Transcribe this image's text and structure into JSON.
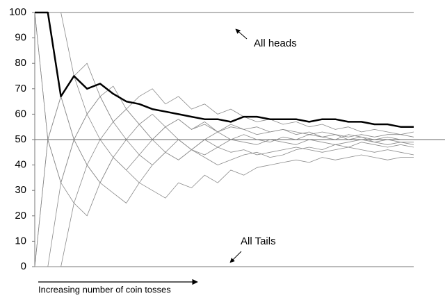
{
  "chart_data": {
    "type": "line",
    "x": [
      1,
      2,
      3,
      4,
      5,
      6,
      7,
      8,
      9,
      10,
      11,
      12,
      13,
      14,
      15,
      16,
      17,
      18,
      19,
      20,
      21,
      22,
      23,
      24,
      25,
      26,
      27,
      28,
      29,
      30
    ],
    "xlim": [
      1,
      30
    ],
    "ylim": [
      0,
      100
    ],
    "yticks": [
      0,
      10,
      20,
      30,
      40,
      50,
      60,
      70,
      80,
      90,
      100
    ],
    "reference_line": 50,
    "annotations": [
      "All heads",
      "All Tails",
      "Increasing number of coin tosses"
    ],
    "series": [
      {
        "color": "#8a8a8a",
        "width": 0.8,
        "values": [
          0,
          50,
          33,
          50,
          40,
          50,
          43,
          38,
          44,
          40,
          45,
          42,
          46,
          44,
          47,
          45,
          46,
          44,
          45,
          46,
          47,
          46,
          45,
          46,
          47,
          46,
          45,
          46,
          45,
          44
        ]
      },
      {
        "color": "#8a8a8a",
        "width": 0.8,
        "values": [
          100,
          50,
          67,
          50,
          60,
          50,
          57,
          62,
          56,
          60,
          55,
          58,
          54,
          56,
          53,
          55,
          54,
          52,
          53,
          54,
          53,
          52,
          53,
          52,
          51,
          52,
          51,
          52,
          52,
          51
        ]
      },
      {
        "color": "#8a8a8a",
        "width": 0.8,
        "values": [
          0,
          0,
          33,
          25,
          40,
          33,
          29,
          25,
          33,
          30,
          27,
          33,
          31,
          36,
          33,
          38,
          36,
          39,
          40,
          41,
          42,
          41,
          43,
          42,
          43,
          44,
          43,
          42,
          43,
          43
        ]
      },
      {
        "color": "#8a8a8a",
        "width": 0.8,
        "values": [
          100,
          100,
          67,
          75,
          60,
          67,
          71,
          62,
          67,
          70,
          64,
          67,
          62,
          64,
          60,
          62,
          59,
          57,
          58,
          56,
          57,
          55,
          56,
          54,
          55,
          53,
          54,
          53,
          52,
          53
        ]
      },
      {
        "color": "#8a8a8a",
        "width": 0.8,
        "values": [
          0,
          50,
          67,
          50,
          60,
          67,
          57,
          50,
          56,
          50,
          55,
          50,
          46,
          50,
          47,
          50,
          49,
          48,
          50,
          49,
          48,
          50,
          49,
          48,
          49,
          50,
          49,
          48,
          49,
          48
        ]
      },
      {
        "color": "#8a8a8a",
        "width": 0.8,
        "values": [
          100,
          50,
          33,
          50,
          40,
          33,
          43,
          50,
          44,
          50,
          45,
          42,
          46,
          43,
          40,
          42,
          44,
          45,
          43,
          44,
          46,
          47,
          46,
          48,
          47,
          49,
          48,
          47,
          48,
          47
        ]
      },
      {
        "color": "#8a8a8a",
        "width": 0.8,
        "values": [
          0,
          0,
          0,
          25,
          20,
          33,
          43,
          38,
          33,
          40,
          45,
          50,
          46,
          50,
          53,
          50,
          52,
          50,
          49,
          51,
          50,
          52,
          51,
          50,
          52,
          51,
          50,
          51,
          50,
          50
        ]
      },
      {
        "color": "#8a8a8a",
        "width": 0.8,
        "values": [
          100,
          100,
          100,
          75,
          80,
          67,
          57,
          62,
          56,
          50,
          55,
          58,
          54,
          57,
          53,
          56,
          54,
          55,
          53,
          54,
          52,
          53,
          51,
          52,
          50,
          51,
          49,
          50,
          49,
          49
        ]
      },
      {
        "color": "#000000",
        "width": 2.5,
        "values": [
          100,
          100,
          67,
          75,
          70,
          72,
          68,
          65,
          64,
          62,
          61,
          60,
          59,
          58,
          58,
          57,
          59,
          59,
          58,
          58,
          58,
          57,
          58,
          58,
          57,
          57,
          56,
          56,
          55,
          55
        ]
      }
    ]
  }
}
